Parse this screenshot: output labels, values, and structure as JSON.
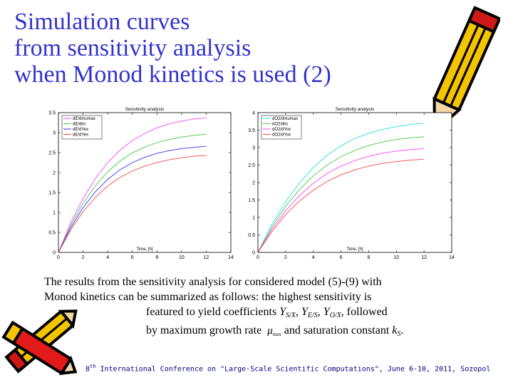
{
  "slide": {
    "title_lines": [
      "Simulation curves",
      "from sensitivity analysis",
      "when Monod kinetics is used (2)"
    ],
    "body": {
      "line1": "The results from the sensitivity analysis for considered model (5)-(9) with",
      "line2": "Monod kinetics can be summarized as follows: the highest sensitivity is",
      "line3_prefix": "featured to yield coefficients ",
      "y1": "Y",
      "y1_sub": "S/X",
      "y2": "Y",
      "y2_sub": "E/S",
      "y3": "Y",
      "y3_sub": "O/X",
      "line3_suffix": " followed",
      "line4_prefix": "by maximum growth rate",
      "mu": "μ",
      "mu_sub": "max",
      "line4_mid": "and saturation constant ",
      "k": "k",
      "k_sub": "S",
      "line4_end": "."
    },
    "footer": {
      "ordinal": "8",
      "ordinal_suffix": "th",
      "text": " International Conference on \"Large-Scale Scientific Computations\", June 6-10, 2011, Sozopol"
    },
    "icons": {
      "top": "pencil-icon",
      "bottom": "pencils-icon"
    }
  },
  "chart_data": [
    {
      "type": "line",
      "title": "Sensitivity analysis",
      "xlabel": "Time, [h]",
      "ylabel": "",
      "xlim": [
        0,
        14
      ],
      "ylim": [
        0,
        3.5
      ],
      "xticks": [
        0,
        2,
        4,
        6,
        8,
        10,
        12,
        14
      ],
      "yticks": [
        0,
        0.5,
        1,
        1.5,
        2,
        2.5,
        3,
        3.5
      ],
      "legend_position": "top-left",
      "x": [
        0,
        1,
        2,
        3,
        4,
        5,
        6,
        7,
        8,
        9,
        10,
        11,
        12
      ],
      "series": [
        {
          "name": "dE/dmumax",
          "color": "#ff44ff",
          "values": [
            0,
            0.75,
            1.35,
            1.85,
            2.25,
            2.56,
            2.8,
            2.98,
            3.12,
            3.22,
            3.29,
            3.34,
            3.37
          ]
        },
        {
          "name": "dE/dks",
          "color": "#44cc44",
          "values": [
            0,
            0.68,
            1.23,
            1.67,
            2.02,
            2.29,
            2.49,
            2.64,
            2.75,
            2.83,
            2.89,
            2.93,
            2.96
          ]
        },
        {
          "name": "dE/dYex",
          "color": "#3333ff",
          "values": [
            0,
            0.62,
            1.12,
            1.52,
            1.83,
            2.07,
            2.25,
            2.38,
            2.48,
            2.55,
            2.6,
            2.63,
            2.66
          ]
        },
        {
          "name": "dE/dYes",
          "color": "#ff4444",
          "values": [
            0,
            0.56,
            1.02,
            1.38,
            1.66,
            1.88,
            2.04,
            2.16,
            2.25,
            2.32,
            2.37,
            2.41,
            2.43
          ]
        }
      ]
    },
    {
      "type": "line",
      "title": "Sensitivity analysis",
      "xlabel": "Time, [h]",
      "ylabel": "",
      "xlim": [
        0,
        14
      ],
      "ylim": [
        0,
        4
      ],
      "xticks": [
        0,
        2,
        4,
        6,
        8,
        10,
        12,
        14
      ],
      "yticks": [
        0,
        0.5,
        1,
        1.5,
        2,
        2.5,
        3,
        3.5,
        4
      ],
      "legend_position": "top-left",
      "x": [
        0,
        1,
        2,
        3,
        4,
        5,
        6,
        7,
        8,
        9,
        10,
        11,
        12
      ],
      "series": [
        {
          "name": "dO2/dmumax",
          "color": "#22dddd",
          "values": [
            0,
            0.8,
            1.45,
            1.99,
            2.43,
            2.78,
            3.05,
            3.26,
            3.41,
            3.52,
            3.6,
            3.66,
            3.7
          ]
        },
        {
          "name": "dO2/dks",
          "color": "#44cc44",
          "values": [
            0,
            0.72,
            1.32,
            1.8,
            2.19,
            2.5,
            2.74,
            2.92,
            3.06,
            3.16,
            3.23,
            3.28,
            3.31
          ]
        },
        {
          "name": "dO2/dYox",
          "color": "#ff44ff",
          "values": [
            0,
            0.65,
            1.19,
            1.63,
            1.98,
            2.26,
            2.47,
            2.63,
            2.75,
            2.84,
            2.9,
            2.94,
            2.97
          ]
        },
        {
          "name": "dO2/dYox",
          "color": "#ff4444",
          "values": [
            0,
            0.59,
            1.08,
            1.47,
            1.78,
            2.03,
            2.22,
            2.36,
            2.47,
            2.55,
            2.6,
            2.64,
            2.67
          ]
        }
      ]
    }
  ]
}
